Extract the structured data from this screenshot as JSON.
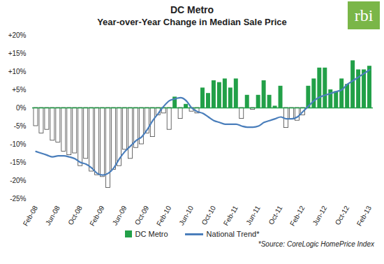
{
  "chart_data": {
    "type": "bar",
    "title": "DC Metro",
    "subtitle": "Year-over-Year Change in Median Sale Price",
    "annotations": [
      "*Source: CoreLogic HomePrice Index",
      "rbi"
    ],
    "legend": "bottom",
    "categories": [
      "Feb-08",
      null,
      null,
      null,
      "Jun-08",
      null,
      null,
      null,
      "Oct-08",
      null,
      null,
      null,
      "Feb-09",
      null,
      null,
      null,
      "Jun-09",
      null,
      null,
      null,
      "Oct-09",
      null,
      null,
      null,
      "Feb-10",
      null,
      null,
      null,
      "Jun-10",
      null,
      null,
      null,
      "Oct-10",
      null,
      null,
      null,
      "Feb-11",
      null,
      null,
      null,
      "Jun-11",
      null,
      null,
      null,
      "Oct-11",
      null,
      null,
      null,
      "Feb-12",
      null,
      null,
      null,
      "Jun-12",
      null,
      null,
      null,
      "Oct-12",
      null,
      null,
      null,
      "Feb-13"
    ],
    "series": [
      {
        "name": "DC Metro",
        "type": "bar",
        "color": "#22a048",
        "values": [
          -5,
          -7,
          -6,
          -9,
          -9.5,
          -12,
          -13,
          -12.5,
          -16,
          -14,
          -17.5,
          -18.5,
          -19,
          -22,
          -17,
          -16,
          -11.5,
          -14,
          -11,
          -10,
          -7,
          -8,
          -2,
          -1.5,
          -6,
          3,
          -3,
          1,
          -1,
          -1.5,
          5.5,
          4,
          7.5,
          7,
          8,
          5.5,
          8,
          -3,
          3.5,
          -0.5,
          3.5,
          7.5,
          3.5,
          0.5,
          6,
          -5.5,
          -3,
          -3.5,
          -2,
          6,
          8,
          11,
          11,
          5,
          4.5,
          8,
          6.5,
          13,
          10.5,
          10.5,
          11.5
        ],
        "colors": [
          "#ffffff",
          "#ffffff",
          "#ffffff",
          "#ffffff",
          "#ffffff",
          "#ffffff",
          "#ffffff",
          "#ffffff",
          "#ffffff",
          "#ffffff",
          "#ffffff",
          "#ffffff",
          "#ffffff",
          "#ffffff",
          "#ffffff",
          "#ffffff",
          "#ffffff",
          "#ffffff",
          "#ffffff",
          "#ffffff",
          "#ffffff",
          "#ffffff",
          "#ffffff",
          "#ffffff",
          "#ffffff",
          "#22a048",
          "#ffffff",
          "#22a048",
          "#ffffff",
          "#ffffff",
          "#22a048",
          "#22a048",
          "#22a048",
          "#22a048",
          "#22a048",
          "#22a048",
          "#22a048",
          "#ffffff",
          "#22a048",
          "#ffffff",
          "#22a048",
          "#22a048",
          "#22a048",
          "#22a048",
          "#22a048",
          "#ffffff",
          "#ffffff",
          "#ffffff",
          "#ffffff",
          "#22a048",
          "#22a048",
          "#22a048",
          "#22a048",
          "#22a048",
          "#22a048",
          "#22a048",
          "#22a048",
          "#22a048",
          "#22a048",
          "#22a048",
          "#22a048"
        ]
      },
      {
        "name": "National Trend*",
        "type": "line",
        "color": "#4a7ebb",
        "values": [
          -12,
          -12.5,
          -13,
          -13.5,
          -13.2,
          -13.2,
          -13.5,
          -14,
          -15,
          -15.5,
          -16.5,
          -18,
          -18.5,
          -18,
          -16.5,
          -14,
          -12,
          -10.5,
          -9,
          -8,
          -6,
          -3.5,
          -1.5,
          0.5,
          2,
          2.5,
          2.8,
          2,
          0,
          -1,
          -1.5,
          -2.5,
          -3.5,
          -4,
          -4.5,
          -4.5,
          -4.5,
          -5,
          -5.3,
          -5.3,
          -5,
          -4,
          -3.5,
          -3,
          -2.5,
          -3,
          -3,
          -2.5,
          -1,
          0.5,
          2,
          3,
          3.5,
          4,
          4.5,
          5,
          6.5,
          7.5,
          8.5,
          9.5,
          10.5
        ]
      }
    ],
    "ylim": [
      -25,
      20
    ],
    "yticks": [
      {
        "value": -25,
        "label": "-25%"
      },
      {
        "value": -20,
        "label": "-20%"
      },
      {
        "value": -15,
        "label": "-15%"
      },
      {
        "value": -10,
        "label": "-10%"
      },
      {
        "value": -5,
        "label": "-5%"
      },
      {
        "value": 0,
        "label": "0%"
      },
      {
        "value": 5,
        "label": "+5%"
      },
      {
        "value": 10,
        "label": "+10%"
      },
      {
        "value": 15,
        "label": "+15%"
      },
      {
        "value": 20,
        "label": "+20%"
      }
    ],
    "grid": false
  }
}
